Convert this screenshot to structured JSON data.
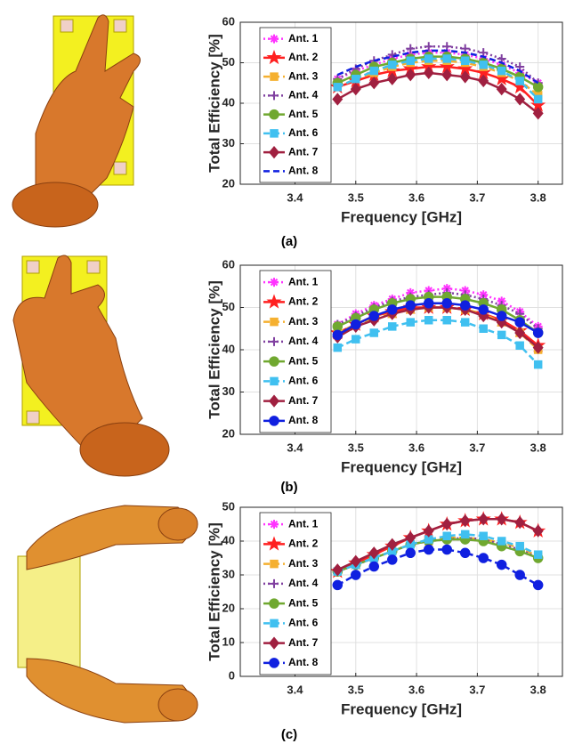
{
  "chart_data": [
    {
      "type": "line",
      "caption": "(a)",
      "x_label": "Frequency [GHz]",
      "y_label": "Total Efficiency [%]",
      "x": [
        3.47,
        3.5,
        3.53,
        3.56,
        3.59,
        3.62,
        3.65,
        3.68,
        3.71,
        3.74,
        3.77,
        3.8
      ],
      "xlim": [
        3.31,
        3.84
      ],
      "xticks": [
        3.4,
        3.5,
        3.6,
        3.7,
        3.8
      ],
      "ylim": [
        20,
        60
      ],
      "yticks": [
        20,
        30,
        40,
        50,
        60
      ],
      "grid": true,
      "legend": "upper-left",
      "series": [
        {
          "name": "Ant. 1",
          "color": "#ff33ff",
          "line": "dotted",
          "marker": "asterisk",
          "values": [
            46,
            48,
            49.5,
            51,
            52,
            52.5,
            52.5,
            52,
            51,
            49.5,
            47.5,
            45
          ]
        },
        {
          "name": "Ant. 2",
          "color": "#ff2020",
          "line": "solid",
          "marker": "star",
          "values": [
            44,
            45.5,
            47,
            48,
            48.5,
            49,
            49,
            48.5,
            47.5,
            46,
            44,
            39.5
          ]
        },
        {
          "name": "Ant. 3",
          "color": "#f5b030",
          "line": "dashed",
          "marker": "square",
          "values": [
            44,
            46,
            47.5,
            49,
            50,
            50.5,
            50.5,
            50,
            49,
            47.5,
            45.5,
            42
          ]
        },
        {
          "name": "Ant. 4",
          "color": "#8040a0",
          "line": "dotted",
          "marker": "plus",
          "values": [
            46,
            48.5,
            50.5,
            52,
            53.5,
            54,
            54,
            53.5,
            52.5,
            51,
            49,
            45
          ]
        },
        {
          "name": "Ant. 5",
          "color": "#70a830",
          "line": "solid",
          "marker": "circle",
          "values": [
            45,
            47,
            49,
            50,
            51,
            51.5,
            51.5,
            51,
            50,
            48.5,
            46.5,
            44
          ]
        },
        {
          "name": "Ant. 6",
          "color": "#40c0f0",
          "line": "dashed",
          "marker": "square",
          "values": [
            44,
            46,
            48,
            49.5,
            50.5,
            51,
            51,
            50.5,
            49.5,
            48,
            45.5,
            41
          ]
        },
        {
          "name": "Ant. 7",
          "color": "#a02040",
          "line": "solid",
          "marker": "diamond",
          "values": [
            41,
            43.5,
            45,
            46,
            47,
            47.5,
            47,
            46.5,
            45.5,
            43.5,
            41,
            37.5
          ]
        },
        {
          "name": "Ant. 8",
          "color": "#1020e0",
          "line": "dashed",
          "marker": "none",
          "values": [
            47,
            49,
            50.5,
            51.5,
            52.5,
            53,
            53,
            52.5,
            51.5,
            50,
            48,
            45
          ]
        }
      ]
    },
    {
      "type": "line",
      "caption": "(b)",
      "x_label": "Frequency [GHz]",
      "y_label": "Total Efficiency [%]",
      "x": [
        3.47,
        3.5,
        3.53,
        3.56,
        3.59,
        3.62,
        3.65,
        3.68,
        3.71,
        3.74,
        3.77,
        3.8
      ],
      "xlim": [
        3.31,
        3.84
      ],
      "xticks": [
        3.4,
        3.5,
        3.6,
        3.7,
        3.8
      ],
      "ylim": [
        20,
        60
      ],
      "yticks": [
        20,
        30,
        40,
        50,
        60
      ],
      "grid": true,
      "legend": "upper-left",
      "series": [
        {
          "name": "Ant. 1",
          "color": "#ff33ff",
          "line": "dotted",
          "marker": "asterisk",
          "values": [
            46,
            48.5,
            50.5,
            52,
            53.5,
            54,
            54.5,
            54,
            53,
            51.5,
            49,
            45.5
          ]
        },
        {
          "name": "Ant. 2",
          "color": "#ff2020",
          "line": "solid",
          "marker": "star",
          "values": [
            44,
            46,
            48,
            49,
            50,
            50,
            50,
            49.5,
            48.5,
            47,
            44.5,
            41
          ]
        },
        {
          "name": "Ant. 3",
          "color": "#f5b030",
          "line": "dashed",
          "marker": "square",
          "values": [
            44,
            46,
            47.5,
            48.5,
            49.5,
            50,
            50,
            49.5,
            48.5,
            46.5,
            44,
            40
          ]
        },
        {
          "name": "Ant. 4",
          "color": "#8040a0",
          "line": "dotted",
          "marker": "plus",
          "values": [
            46,
            48,
            50,
            51.5,
            52.5,
            53,
            53.5,
            53,
            52,
            50.5,
            48.5,
            45
          ]
        },
        {
          "name": "Ant. 5",
          "color": "#70a830",
          "line": "solid",
          "marker": "circle",
          "values": [
            45.5,
            47.5,
            49.5,
            51,
            52,
            52.5,
            52.5,
            52,
            51,
            49.5,
            47,
            44
          ]
        },
        {
          "name": "Ant. 6",
          "color": "#40c0f0",
          "line": "dashed",
          "marker": "square",
          "values": [
            40.5,
            42.5,
            44,
            45.5,
            46.5,
            47,
            47,
            46.5,
            45,
            43.5,
            41,
            36.5
          ]
        },
        {
          "name": "Ant. 7",
          "color": "#a02040",
          "line": "solid",
          "marker": "diamond",
          "values": [
            43,
            45.5,
            47,
            48.5,
            49.5,
            50,
            50,
            49.5,
            48,
            46.5,
            44,
            40.5
          ]
        },
        {
          "name": "Ant. 8",
          "color": "#1020e0",
          "line": "solid",
          "marker": "circle",
          "values": [
            43.5,
            46,
            48,
            49.5,
            50.5,
            51,
            51,
            50.5,
            49.5,
            48,
            46.5,
            44
          ]
        }
      ]
    },
    {
      "type": "line",
      "caption": "(c)",
      "x_label": "Frequency [GHz]",
      "y_label": "Total Efficiency [%]",
      "x": [
        3.47,
        3.5,
        3.53,
        3.56,
        3.59,
        3.62,
        3.65,
        3.68,
        3.71,
        3.74,
        3.77,
        3.8
      ],
      "xlim": [
        3.31,
        3.84
      ],
      "xticks": [
        3.4,
        3.5,
        3.6,
        3.7,
        3.8
      ],
      "ylim": [
        0,
        50
      ],
      "yticks": [
        0,
        10,
        20,
        30,
        40,
        50
      ],
      "grid": true,
      "legend": "upper-left",
      "series": [
        {
          "name": "Ant. 1",
          "color": "#ff33ff",
          "line": "dotted",
          "marker": "asterisk",
          "values": [
            31,
            33,
            35,
            37,
            39,
            40,
            40.5,
            40.5,
            40,
            38.5,
            37,
            35
          ]
        },
        {
          "name": "Ant. 2",
          "color": "#ff2020",
          "line": "solid",
          "marker": "star",
          "values": [
            31,
            33.5,
            36,
            38.5,
            41,
            43,
            45,
            46,
            46.5,
            46.5,
            45.5,
            43
          ]
        },
        {
          "name": "Ant. 3",
          "color": "#f5b030",
          "line": "dashed",
          "marker": "square",
          "values": [
            31,
            33,
            35,
            37,
            39,
            40,
            41,
            41,
            40.5,
            39.5,
            38,
            35.5
          ]
        },
        {
          "name": "Ant. 4",
          "color": "#8040a0",
          "line": "dotted",
          "marker": "plus",
          "values": [
            31,
            33,
            35,
            37,
            39,
            40,
            40.5,
            41,
            40.5,
            39,
            37.5,
            35
          ]
        },
        {
          "name": "Ant. 5",
          "color": "#70a830",
          "line": "solid",
          "marker": "circle",
          "values": [
            31,
            33,
            35,
            37,
            39,
            40,
            40.5,
            40.5,
            40,
            38.5,
            37,
            35
          ]
        },
        {
          "name": "Ant. 6",
          "color": "#40c0f0",
          "line": "dashed",
          "marker": "square",
          "values": [
            31,
            33,
            35,
            37,
            39,
            40.5,
            41.5,
            42,
            41.5,
            40,
            38.5,
            36
          ]
        },
        {
          "name": "Ant. 7",
          "color": "#a02040",
          "line": "solid",
          "marker": "diamond",
          "values": [
            31.5,
            34,
            36.5,
            39,
            41,
            43,
            45,
            46,
            46.5,
            46.5,
            45.5,
            43
          ]
        },
        {
          "name": "Ant. 8",
          "color": "#1020e0",
          "line": "dashed",
          "marker": "circle",
          "values": [
            27,
            30,
            32.5,
            34.5,
            36.5,
            37.5,
            37.5,
            36.5,
            35,
            33,
            30,
            27
          ]
        }
      ]
    }
  ]
}
